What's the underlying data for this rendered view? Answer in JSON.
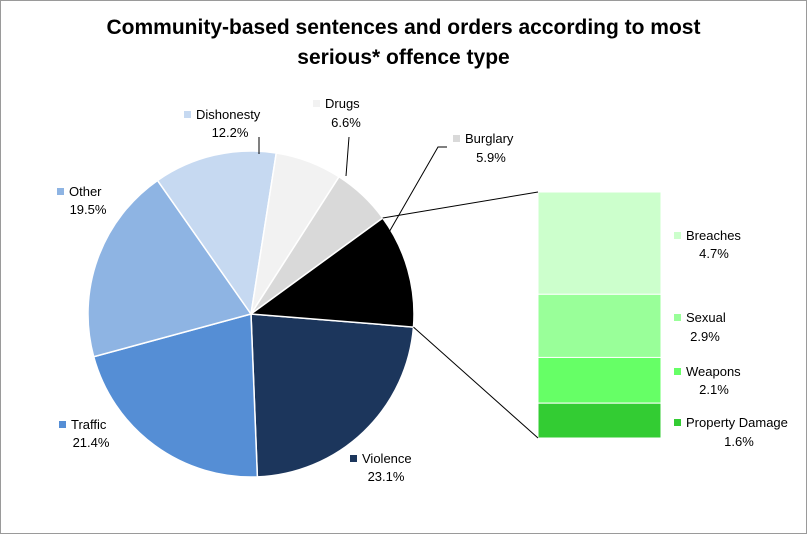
{
  "chart_data": {
    "type": "pie",
    "title_line1": "Community-based sentences and orders according to most",
    "title_line2": "serious* offence type",
    "pie": [
      {
        "name": "Violence",
        "label": "23.1%",
        "value": 23.1,
        "color": "#1c365c"
      },
      {
        "name": "Traffic",
        "label": "21.4%",
        "value": 21.4,
        "color": "#558ed5"
      },
      {
        "name": "Other",
        "label": "19.5%",
        "value": 19.5,
        "color": "#8eb4e3"
      },
      {
        "name": "Dishonesty",
        "label": "12.2%",
        "value": 12.2,
        "color": "#c6d9f1"
      },
      {
        "name": "Drugs",
        "label": "6.6%",
        "value": 6.6,
        "color": "#f2f2f2"
      },
      {
        "name": "Burglary",
        "label": "5.9%",
        "value": 5.9,
        "color": "#d9d9d9"
      },
      {
        "name": "",
        "label": "",
        "value": 11.3,
        "color": "#000000"
      }
    ],
    "breakdown": [
      {
        "name": "Breaches",
        "label": "4.7%",
        "value": 4.7,
        "color": "#ccffcc"
      },
      {
        "name": "Sexual",
        "label": "2.9%",
        "value": 2.9,
        "color": "#99ff99"
      },
      {
        "name": "Weapons",
        "label": "2.1%",
        "value": 2.1,
        "color": "#66ff66"
      },
      {
        "name": "Property Damage",
        "label": "1.6%",
        "value": 1.6,
        "color": "#33cc33"
      }
    ]
  }
}
